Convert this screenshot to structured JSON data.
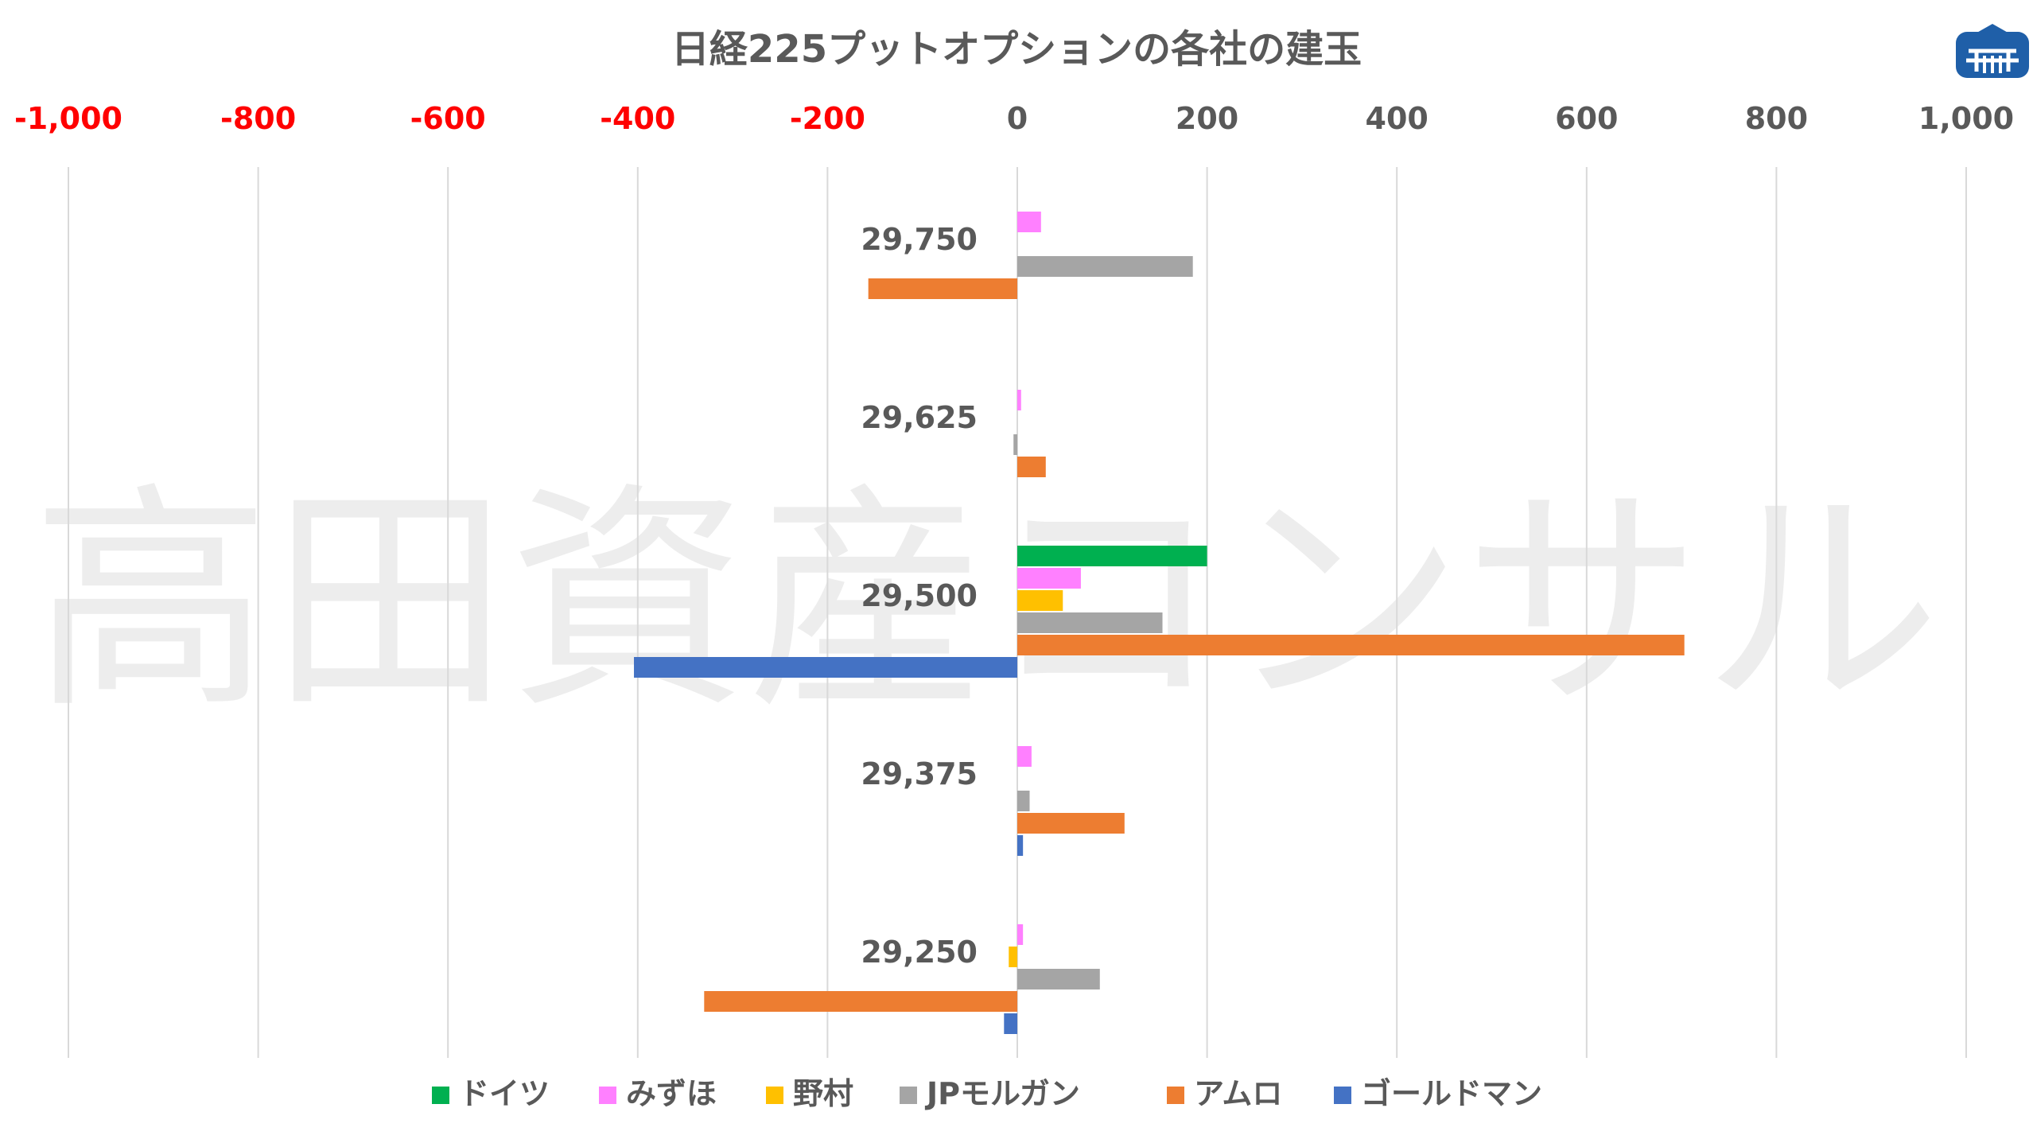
{
  "chart_data": {
    "type": "bar",
    "orientation": "horizontal",
    "title": "日経225プットオプションの各社の建玉",
    "watermark": "高田資産コンサル",
    "x_ticks": [
      "-1,000",
      "-800",
      "-600",
      "-400",
      "-200",
      "0",
      "200",
      "400",
      "600",
      "800",
      "1,000"
    ],
    "xlim": [
      -1000,
      1000
    ],
    "negative_tick_color": "#ff0000",
    "tick_color": "#595959",
    "grid": true,
    "legend_position": "bottom",
    "categories": [
      "29,750",
      "29,625",
      "29,500",
      "29,375",
      "29,250"
    ],
    "series": [
      {
        "name": "ドイツ",
        "color": "#00b050",
        "values": [
          0,
          0,
          200,
          0,
          0
        ]
      },
      {
        "name": "みずほ",
        "color": "#ff80ff",
        "values": [
          25,
          4,
          67,
          15,
          6
        ]
      },
      {
        "name": "野村",
        "color": "#ffc000",
        "values": [
          0,
          0,
          48,
          0,
          -9
        ]
      },
      {
        "name": "JPモルガン",
        "color": "#a5a5a5",
        "values": [
          185,
          -4,
          153,
          13,
          87
        ]
      },
      {
        "name": "アムロ",
        "color": "#ed7d31",
        "values": [
          -157,
          30,
          703,
          113,
          -330
        ]
      },
      {
        "name": "ゴールドマン",
        "color": "#4472c4",
        "values": [
          0,
          0,
          -404,
          6,
          -14
        ]
      }
    ]
  },
  "logo": {
    "name": "company-logo",
    "color": "#1f5fa8"
  }
}
